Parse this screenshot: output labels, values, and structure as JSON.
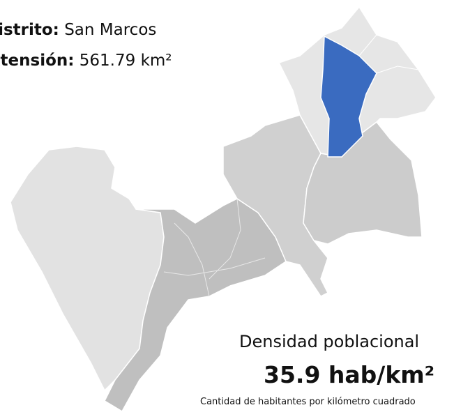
{
  "info": {
    "district_label": "Distrito:",
    "district_name": "San Marcos",
    "area_label": "Extensión:",
    "area_value": "561.79",
    "area_unit": "km²",
    "density_title": "Densidad poblacional",
    "density_value": "35.9 hab/km²",
    "density_caption": "Cantidad de habitantes por kilómetro cuadrado"
  }
}
